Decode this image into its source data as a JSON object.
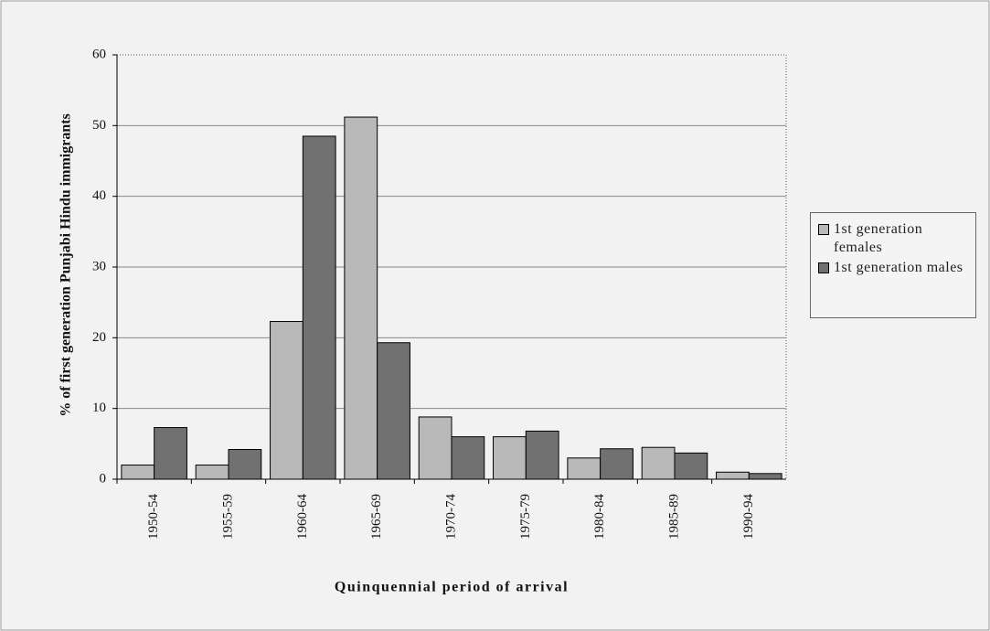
{
  "chart_data": {
    "type": "bar",
    "x_label": "Quinquennial period of arrival",
    "y_label": "% of first generation Punjabi Hindu immigrants",
    "categories": [
      "1950-54",
      "1955-59",
      "1960-64",
      "1965-69",
      "1970-74",
      "1975-79",
      "1980-84",
      "1985-89",
      "1990-94"
    ],
    "series": [
      {
        "name": "1st generation females",
        "color": "#b9b9b9",
        "values": [
          2,
          2,
          22.3,
          51.2,
          8.8,
          6,
          3,
          4.5,
          1
        ]
      },
      {
        "name": "1st generation males",
        "color": "#717171",
        "values": [
          7.3,
          4.2,
          48.5,
          19.3,
          6,
          6.8,
          4.3,
          3.7,
          0.8
        ]
      }
    ],
    "ylim": [
      0,
      60
    ],
    "yticks": [
      0,
      10,
      20,
      30,
      40,
      50,
      60
    ],
    "grid": true,
    "legend": "right"
  }
}
